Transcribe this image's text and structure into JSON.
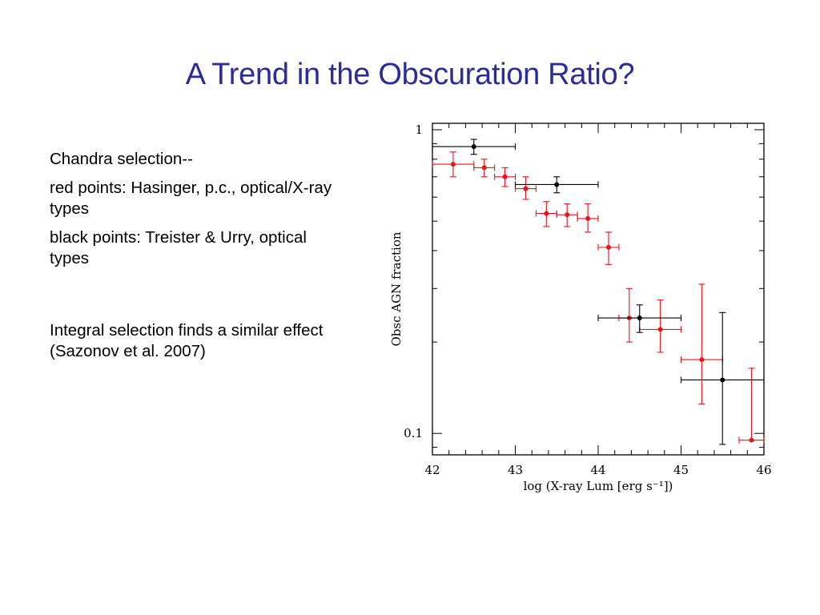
{
  "slide": {
    "title": "A Trend in the Obscuration Ratio?",
    "text": [
      "Chandra selection--",
      "red points: Hasinger, p.c., optical/X-ray types",
      "black points: Treister & Urry, optical types",
      "Integral selection finds a similar effect (Sazonov et al. 2007)"
    ]
  },
  "chart_data": {
    "type": "scatter",
    "title": "",
    "xlabel": "log (X-ray Lum [erg s⁻¹])",
    "ylabel": "Obsc AGN fraction",
    "xlim": [
      42,
      46
    ],
    "ylim": [
      0.085,
      1.05
    ],
    "yscale": "log",
    "x_ticks": [
      "42",
      "43",
      "44",
      "45",
      "46"
    ],
    "y_ticks": [
      "0.1",
      "1"
    ],
    "grid": false,
    "series": [
      {
        "color": "#e8141b",
        "points": [
          {
            "x": 42.25,
            "y": 0.77,
            "xerr": [
              0.25,
              0.25
            ],
            "ylo": 0.7,
            "yhi": 0.845
          },
          {
            "x": 42.625,
            "y": 0.75,
            "xerr": [
              0.125,
              0.125
            ],
            "ylo": 0.7,
            "yhi": 0.8
          },
          {
            "x": 42.875,
            "y": 0.7,
            "xerr": [
              0.125,
              0.125
            ],
            "ylo": 0.65,
            "yhi": 0.75
          },
          {
            "x": 43.125,
            "y": 0.64,
            "xerr": [
              0.125,
              0.125
            ],
            "ylo": 0.59,
            "yhi": 0.7
          },
          {
            "x": 43.375,
            "y": 0.53,
            "xerr": [
              0.125,
              0.125
            ],
            "ylo": 0.48,
            "yhi": 0.58
          },
          {
            "x": 43.625,
            "y": 0.525,
            "xerr": [
              0.125,
              0.125
            ],
            "ylo": 0.48,
            "yhi": 0.57
          },
          {
            "x": 43.875,
            "y": 0.51,
            "xerr": [
              0.125,
              0.125
            ],
            "ylo": 0.46,
            "yhi": 0.57
          },
          {
            "x": 44.125,
            "y": 0.41,
            "xerr": [
              0.125,
              0.125
            ],
            "ylo": 0.36,
            "yhi": 0.46
          },
          {
            "x": 44.375,
            "y": 0.24,
            "xerr": [
              0.125,
              0.125
            ],
            "ylo": 0.2,
            "yhi": 0.3
          },
          {
            "x": 44.75,
            "y": 0.22,
            "xerr": [
              0.25,
              0.25
            ],
            "ylo": 0.185,
            "yhi": 0.275
          },
          {
            "x": 45.25,
            "y": 0.175,
            "xerr": [
              0.25,
              0.25
            ],
            "ylo": 0.125,
            "yhi": 0.31
          },
          {
            "x": 45.85,
            "y": 0.095,
            "xerr": [
              0.15,
              0.15
            ],
            "ylo": 0.095,
            "yhi": 0.164
          }
        ]
      },
      {
        "color": "#000000",
        "points": [
          {
            "x": 42.5,
            "y": 0.88,
            "xerr": [
              0.5,
              0.5
            ],
            "ylo": 0.83,
            "yhi": 0.93
          },
          {
            "x": 43.5,
            "y": 0.66,
            "xerr": [
              0.5,
              0.5
            ],
            "ylo": 0.62,
            "yhi": 0.7
          },
          {
            "x": 44.5,
            "y": 0.24,
            "xerr": [
              0.5,
              0.5
            ],
            "ylo": 0.215,
            "yhi": 0.265
          },
          {
            "x": 45.5,
            "y": 0.15,
            "xerr": [
              0.5,
              0.5
            ],
            "ylo": 0.092,
            "yhi": 0.25
          }
        ]
      }
    ]
  }
}
